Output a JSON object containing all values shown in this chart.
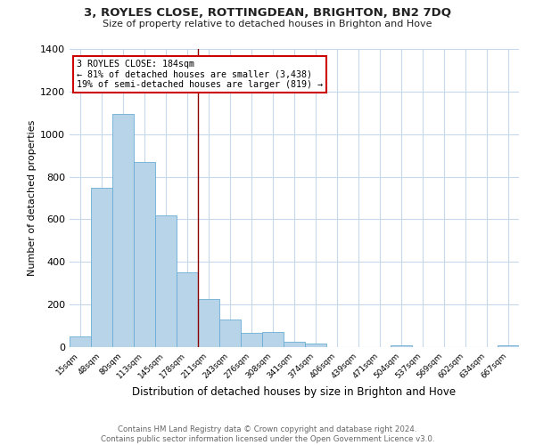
{
  "title1": "3, ROYLES CLOSE, ROTTINGDEAN, BRIGHTON, BN2 7DQ",
  "title2": "Size of property relative to detached houses in Brighton and Hove",
  "xlabel": "Distribution of detached houses by size in Brighton and Hove",
  "ylabel": "Number of detached properties",
  "bar_labels": [
    "15sqm",
    "48sqm",
    "80sqm",
    "113sqm",
    "145sqm",
    "178sqm",
    "211sqm",
    "243sqm",
    "276sqm",
    "308sqm",
    "341sqm",
    "374sqm",
    "406sqm",
    "439sqm",
    "471sqm",
    "504sqm",
    "537sqm",
    "569sqm",
    "602sqm",
    "634sqm",
    "667sqm"
  ],
  "bar_values": [
    50,
    750,
    1095,
    870,
    620,
    350,
    225,
    130,
    65,
    70,
    25,
    18,
    0,
    0,
    0,
    10,
    0,
    0,
    0,
    0,
    10
  ],
  "bar_color": "#b8d4e8",
  "bar_edge_color": "#6aadd5",
  "ylim": [
    0,
    1400
  ],
  "yticks": [
    0,
    200,
    400,
    600,
    800,
    1000,
    1200,
    1400
  ],
  "vline_x_index": 5.5,
  "vline_color": "#8b0000",
  "annotation_text1": "3 ROYLES CLOSE: 184sqm",
  "annotation_text2": "← 81% of detached houses are smaller (3,438)",
  "annotation_text3": "19% of semi-detached houses are larger (819) →",
  "annotation_box_color": "#ffffff",
  "annotation_box_edge": "#cc0000",
  "footer1": "Contains HM Land Registry data © Crown copyright and database right 2024.",
  "footer2": "Contains public sector information licensed under the Open Government Licence v3.0.",
  "background_color": "#ffffff",
  "grid_color": "#c8d8ec"
}
